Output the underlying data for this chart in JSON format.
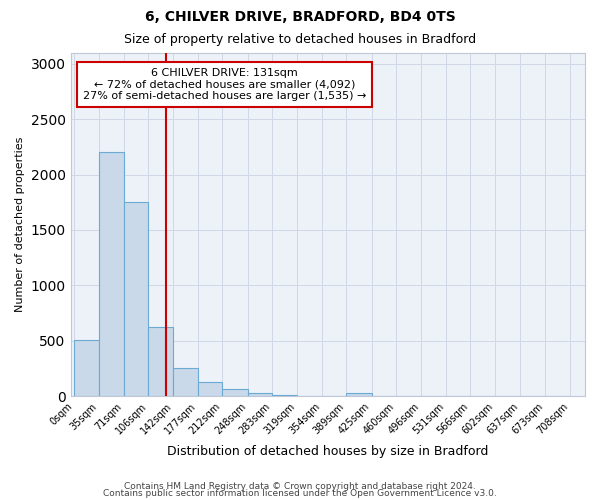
{
  "title1": "6, CHILVER DRIVE, BRADFORD, BD4 0TS",
  "title2": "Size of property relative to detached houses in Bradford",
  "xlabel": "Distribution of detached houses by size in Bradford",
  "ylabel": "Number of detached properties",
  "annotation_line1": "6 CHILVER DRIVE: 131sqm",
  "annotation_line2": "← 72% of detached houses are smaller (4,092)",
  "annotation_line3": "27% of semi-detached houses are larger (1,535) →",
  "footer1": "Contains HM Land Registry data © Crown copyright and database right 2024.",
  "footer2": "Contains public sector information licensed under the Open Government Licence v3.0.",
  "property_size": 131,
  "bin_edges": [
    0,
    35,
    71,
    106,
    142,
    177,
    212,
    248,
    283,
    319,
    354,
    389,
    425,
    460,
    496,
    531,
    566,
    602,
    637,
    673,
    708
  ],
  "bar_heights": [
    510,
    2200,
    1750,
    630,
    260,
    130,
    70,
    30,
    15,
    5,
    2,
    30,
    0,
    0,
    0,
    0,
    0,
    0,
    0,
    0
  ],
  "bar_color": "#c9d9ea",
  "bar_edge_color": "#6aaad4",
  "vline_color": "#cc0000",
  "annotation_box_edgecolor": "#cc0000",
  "axes_bg_color": "#edf2f8",
  "grid_color": "#d0d8e8",
  "ylim": [
    0,
    3100
  ],
  "yticks": [
    0,
    500,
    1000,
    1500,
    2000,
    2500,
    3000
  ],
  "fig_width": 6.0,
  "fig_height": 5.0,
  "dpi": 100
}
